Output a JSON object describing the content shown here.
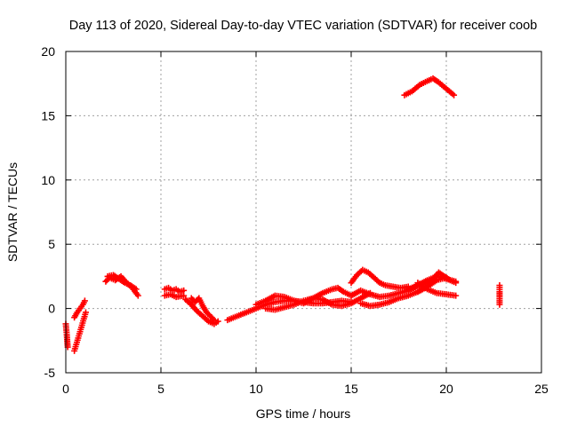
{
  "chart_data": {
    "type": "scatter",
    "title": "Day 113 of 2020, Sidereal Day-to-day VTEC variation (SDTVAR) for receiver coob",
    "xlabel": "GPS time / hours",
    "ylabel": "SDTVAR / TECUs",
    "xlim": [
      0,
      25
    ],
    "ylim": [
      -5,
      20
    ],
    "xticks": [
      "0",
      "5",
      "10",
      "15",
      "20",
      "25"
    ],
    "yticks": [
      "-5",
      "0",
      "5",
      "10",
      "15",
      "20"
    ],
    "grid": true,
    "marker": "+",
    "color": "#ff0000",
    "series": [
      {
        "name": "s1",
        "x": [
          0.0,
          0.05,
          0.1
        ],
        "y": [
          -1.2,
          -2.0,
          -3.0
        ]
      },
      {
        "name": "s2",
        "x": [
          0.45,
          0.55,
          0.65,
          0.75,
          0.85,
          0.95,
          1.05
        ],
        "y": [
          -3.3,
          -2.8,
          -2.3,
          -1.8,
          -1.3,
          -0.8,
          -0.3
        ]
      },
      {
        "name": "s3",
        "x": [
          0.45,
          0.6,
          0.75,
          0.9,
          1.0
        ],
        "y": [
          -0.7,
          -0.3,
          0.0,
          0.3,
          0.6
        ]
      },
      {
        "name": "s4",
        "x": [
          2.1,
          2.3,
          2.6,
          2.9,
          3.2,
          3.5,
          3.8
        ],
        "y": [
          2.1,
          2.4,
          2.2,
          2.5,
          2.0,
          1.6,
          1.0
        ]
      },
      {
        "name": "s5",
        "x": [
          2.2,
          2.5,
          2.8,
          3.1,
          3.4,
          3.7
        ],
        "y": [
          2.5,
          2.6,
          2.3,
          2.0,
          1.8,
          1.5
        ]
      },
      {
        "name": "s6",
        "x": [
          5.2,
          5.4,
          5.6,
          5.8,
          6.0,
          6.2
        ],
        "y": [
          1.5,
          1.6,
          1.4,
          1.5,
          1.3,
          1.4
        ]
      },
      {
        "name": "s7",
        "x": [
          5.2,
          5.5,
          5.8,
          6.2
        ],
        "y": [
          1.0,
          1.1,
          0.9,
          1.0
        ]
      },
      {
        "name": "s8",
        "x": [
          6.3,
          6.6,
          6.9,
          7.2,
          7.5,
          7.8,
          8.0
        ],
        "y": [
          0.7,
          0.3,
          -0.2,
          -0.6,
          -1.0,
          -1.2,
          -1.0
        ]
      },
      {
        "name": "s9",
        "x": [
          6.6,
          6.8,
          7.0,
          7.2,
          7.4,
          7.6,
          7.8
        ],
        "y": [
          0.8,
          0.5,
          0.8,
          0.2,
          -0.3,
          -0.6,
          -0.9
        ]
      },
      {
        "name": "s10",
        "x": [
          8.5,
          9.0,
          9.5,
          10.0,
          10.5,
          11.0,
          11.5,
          12.0,
          12.5,
          13.0,
          13.5,
          14.0,
          14.5,
          15.0
        ],
        "y": [
          -0.9,
          -0.6,
          -0.3,
          0.0,
          0.3,
          0.5,
          0.6,
          0.6,
          0.5,
          0.4,
          0.4,
          0.5,
          0.6,
          0.5
        ]
      },
      {
        "name": "s11",
        "x": [
          10.0,
          10.5,
          11.0,
          11.5,
          12.0,
          12.5,
          13.0,
          13.5,
          14.0,
          14.3,
          14.6,
          15.0
        ],
        "y": [
          0.3,
          0.6,
          1.0,
          0.9,
          0.6,
          0.4,
          0.8,
          1.2,
          1.5,
          1.6,
          1.3,
          1.0
        ]
      },
      {
        "name": "s12",
        "x": [
          10.5,
          11.0,
          11.5,
          12.0,
          12.5,
          13.0,
          13.5,
          14.0,
          14.5,
          15.0,
          15.5,
          16.0
        ],
        "y": [
          0.0,
          -0.1,
          0.1,
          0.3,
          0.6,
          0.8,
          0.7,
          0.3,
          0.2,
          0.4,
          0.8,
          1.2
        ]
      },
      {
        "name": "s13",
        "x": [
          15.0,
          15.3,
          15.6,
          15.9,
          16.2,
          16.5,
          16.8,
          17.2,
          17.6,
          18.0
        ],
        "y": [
          2.0,
          2.6,
          3.0,
          2.8,
          2.4,
          2.0,
          1.8,
          1.7,
          1.6,
          1.7
        ]
      },
      {
        "name": "s14",
        "x": [
          15.0,
          15.5,
          16.0,
          16.5,
          17.0,
          17.5,
          18.0,
          18.5,
          19.0
        ],
        "y": [
          1.0,
          1.4,
          1.1,
          0.9,
          1.0,
          1.2,
          1.4,
          1.8,
          2.0
        ]
      },
      {
        "name": "s15",
        "x": [
          15.5,
          16.0,
          16.5,
          17.0,
          17.5,
          18.0,
          18.5,
          19.0,
          19.5,
          20.0
        ],
        "y": [
          0.4,
          0.2,
          0.3,
          0.5,
          0.8,
          1.0,
          1.3,
          1.7,
          2.2,
          2.4
        ]
      },
      {
        "name": "s16",
        "x": [
          18.0,
          18.5,
          19.0,
          19.5,
          20.0,
          20.5
        ],
        "y": [
          1.5,
          1.8,
          2.2,
          2.5,
          2.3,
          2.1
        ]
      },
      {
        "name": "s17",
        "x": [
          18.5,
          19.0,
          19.3,
          19.6,
          19.9,
          20.2,
          20.5
        ],
        "y": [
          1.3,
          1.7,
          2.3,
          2.8,
          2.5,
          2.2,
          2.0
        ]
      },
      {
        "name": "s18",
        "x": [
          18.5,
          19.0,
          19.5,
          20.0,
          20.5
        ],
        "y": [
          2.0,
          1.5,
          1.2,
          1.1,
          1.0
        ]
      },
      {
        "name": "s19",
        "x": [
          17.8,
          18.2,
          18.6,
          19.0,
          19.3,
          19.6,
          20.0,
          20.4
        ],
        "y": [
          16.6,
          16.9,
          17.4,
          17.7,
          17.9,
          17.6,
          17.1,
          16.6
        ]
      },
      {
        "name": "s20",
        "x": [
          22.8,
          22.8,
          22.8,
          22.8,
          22.8
        ],
        "y": [
          1.8,
          1.3,
          0.9,
          0.6,
          0.3
        ]
      }
    ]
  }
}
